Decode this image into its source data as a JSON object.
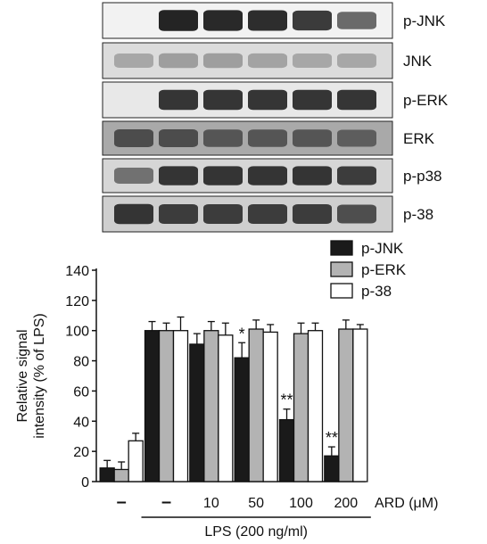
{
  "blot": {
    "lanes": 6,
    "rows": [
      {
        "label": "p-JNK",
        "bg": "#f2f2f2",
        "band_intensity": [
          0.0,
          0.95,
          0.92,
          0.9,
          0.82,
          0.55
        ]
      },
      {
        "label": "JNK",
        "bg": "#dcdcdc",
        "band_intensity": [
          0.2,
          0.25,
          0.25,
          0.22,
          0.2,
          0.2
        ]
      },
      {
        "label": "p-ERK",
        "bg": "#e8e8e8",
        "band_intensity": [
          0.0,
          0.85,
          0.85,
          0.85,
          0.85,
          0.85
        ]
      },
      {
        "label": "ERK",
        "bg": "#a9a9a9",
        "band_intensity": [
          0.7,
          0.7,
          0.65,
          0.65,
          0.65,
          0.6
        ]
      },
      {
        "label": "p-p38",
        "bg": "#d6d6d6",
        "band_intensity": [
          0.5,
          0.85,
          0.85,
          0.85,
          0.85,
          0.8
        ]
      },
      {
        "label": "p-38",
        "bg": "#cfcfcf",
        "band_intensity": [
          0.85,
          0.8,
          0.8,
          0.8,
          0.8,
          0.7
        ]
      }
    ]
  },
  "chart_data": {
    "type": "bar",
    "ylabel": "Relative signal intensity (% of LPS)",
    "ylim": [
      0,
      140
    ],
    "yticks": [
      0,
      20,
      40,
      60,
      80,
      100,
      120,
      140
    ],
    "categories": [
      "–",
      "–",
      "10",
      "50",
      "100",
      "200"
    ],
    "ard_label": "ARD (μM)",
    "lps_label": "LPS (200 ng/ml)",
    "lps_groups": [
      1,
      2,
      3,
      4,
      5
    ],
    "legend_position": "top-right",
    "series": [
      {
        "name": "p-JNK",
        "color": "#1a1a1a",
        "values": [
          9,
          100,
          91,
          82,
          41,
          17
        ],
        "errors": [
          5,
          6,
          7,
          10,
          7,
          6
        ],
        "marks": [
          "",
          "",
          "",
          "*",
          "**",
          "**"
        ]
      },
      {
        "name": "p-ERK",
        "color": "#b3b3b3",
        "values": [
          8,
          100,
          100,
          101,
          98,
          101
        ],
        "errors": [
          5,
          5,
          6,
          6,
          7,
          6
        ],
        "marks": [
          "",
          "",
          "",
          "",
          "",
          ""
        ]
      },
      {
        "name": "p-38",
        "color": "#ffffff",
        "values": [
          27,
          100,
          97,
          99,
          100,
          101
        ],
        "errors": [
          5,
          9,
          8,
          5,
          5,
          3
        ],
        "marks": [
          "",
          "",
          "",
          "",
          "",
          ""
        ]
      }
    ]
  }
}
